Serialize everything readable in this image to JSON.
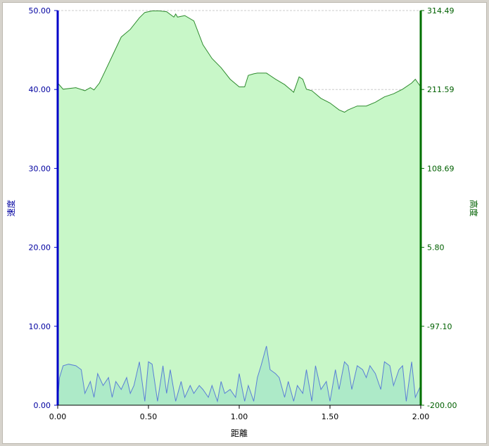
{
  "chart_data": {
    "type": "area",
    "xlabel": "距離",
    "ylabel_left": "速度",
    "ylabel_right": "高度",
    "x_ticks": [
      "0.00",
      "0.50",
      "1.00",
      "1.50",
      "2.00"
    ],
    "y_left_ticks": [
      "0.00",
      "10.00",
      "20.00",
      "30.00",
      "40.00",
      "50.00"
    ],
    "y_right_ticks": [
      "-200.00",
      "-97.10",
      "5.80",
      "108.69",
      "211.59",
      "314.49"
    ],
    "xlim": [
      0,
      2
    ],
    "ylim_left": [
      0,
      50
    ],
    "ylim_right": [
      -200,
      314.49
    ],
    "grid": true,
    "colors": {
      "left_axis": "#0000c8",
      "right_axis": "#007000",
      "altitude_fill": "#c8f7c8",
      "altitude_line": "#2e8b2e",
      "speed_fill": "#a8e8c8",
      "speed_line": "#5a7fd6",
      "grid": "#cccccc"
    },
    "series": [
      {
        "axis": "right",
        "x": [
          0,
          0.03,
          0.1,
          0.15,
          0.18,
          0.2,
          0.23,
          0.26,
          0.3,
          0.35,
          0.4,
          0.45,
          0.48,
          0.52,
          0.56,
          0.6,
          0.64,
          0.65,
          0.66,
          0.7,
          0.75,
          0.8,
          0.85,
          0.9,
          0.95,
          1.0,
          1.03,
          1.05,
          1.08,
          1.1,
          1.15,
          1.2,
          1.25,
          1.3,
          1.33,
          1.35,
          1.37,
          1.4,
          1.45,
          1.5,
          1.55,
          1.58,
          1.6,
          1.65,
          1.7,
          1.75,
          1.8,
          1.85,
          1.9,
          1.95,
          1.97,
          2.0
        ],
        "values": [
          220,
          212,
          214,
          210,
          214,
          211,
          220,
          235,
          255,
          280,
          290,
          305,
          312,
          314,
          314,
          313,
          306,
          310,
          306,
          308,
          301,
          270,
          252,
          240,
          225,
          215,
          215,
          230,
          232,
          233,
          233,
          225,
          218,
          208,
          228,
          225,
          212,
          210,
          200,
          194,
          185,
          182,
          185,
          190,
          190,
          195,
          202,
          206,
          212,
          220,
          225,
          215
        ]
      },
      {
        "axis": "left",
        "x": [
          0,
          0.01,
          0.03,
          0.06,
          0.1,
          0.13,
          0.15,
          0.18,
          0.2,
          0.22,
          0.25,
          0.28,
          0.3,
          0.32,
          0.35,
          0.38,
          0.4,
          0.42,
          0.45,
          0.48,
          0.5,
          0.52,
          0.55,
          0.58,
          0.6,
          0.62,
          0.65,
          0.68,
          0.7,
          0.73,
          0.75,
          0.78,
          0.8,
          0.83,
          0.85,
          0.88,
          0.9,
          0.92,
          0.95,
          0.98,
          1.0,
          1.03,
          1.05,
          1.08,
          1.1,
          1.12,
          1.15,
          1.17,
          1.2,
          1.22,
          1.25,
          1.27,
          1.3,
          1.32,
          1.35,
          1.37,
          1.4,
          1.42,
          1.45,
          1.48,
          1.5,
          1.53,
          1.55,
          1.58,
          1.6,
          1.62,
          1.65,
          1.68,
          1.7,
          1.72,
          1.75,
          1.78,
          1.8,
          1.83,
          1.85,
          1.88,
          1.9,
          1.92,
          1.95,
          1.97,
          2.0
        ],
        "values": [
          0.5,
          3.5,
          5.0,
          5.2,
          5.0,
          4.5,
          1.5,
          3.0,
          1.0,
          4.0,
          2.5,
          3.5,
          1.0,
          3.0,
          2.0,
          3.5,
          1.5,
          2.5,
          5.5,
          0.5,
          5.5,
          5.2,
          0.5,
          5.0,
          1.5,
          4.5,
          0.5,
          3.0,
          1.0,
          2.5,
          1.5,
          2.5,
          2.0,
          1.0,
          2.5,
          0.5,
          3.0,
          1.5,
          2.0,
          1.0,
          4.0,
          0.5,
          2.5,
          0.5,
          3.5,
          5.0,
          7.5,
          4.5,
          4.0,
          3.5,
          1.0,
          3.0,
          0.5,
          2.5,
          1.5,
          4.5,
          0.5,
          5.0,
          2.0,
          3.0,
          0.5,
          4.5,
          2.0,
          5.5,
          5.0,
          2.0,
          5.0,
          4.5,
          3.5,
          5.0,
          4.0,
          2.0,
          5.5,
          5.0,
          2.5,
          4.5,
          5.0,
          0.5,
          5.5,
          1.0,
          2.5
        ]
      }
    ]
  }
}
